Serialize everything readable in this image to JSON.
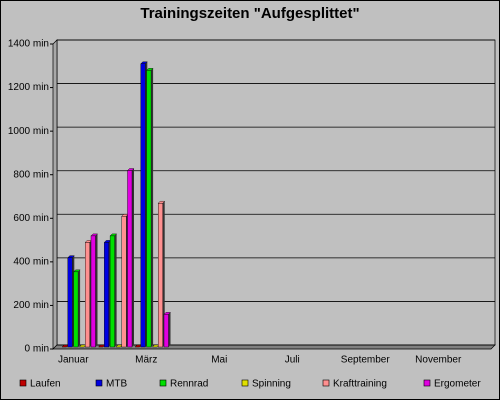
{
  "chart_data": {
    "type": "bar",
    "title": "Trainingszeiten \"Aufgesplittet\"",
    "categories": [
      "Januar",
      null,
      "März",
      null,
      "Mai",
      null,
      "Juli",
      null,
      "September",
      null,
      "November",
      null
    ],
    "series": [
      {
        "name": "Laufen",
        "color": "#c00000",
        "values": [
          0,
          0,
          0,
          null,
          null,
          null,
          null,
          null,
          null,
          null,
          null,
          null
        ]
      },
      {
        "name": "MTB",
        "color": "#0000e0",
        "values": [
          410,
          480,
          1300,
          null,
          null,
          null,
          null,
          null,
          null,
          null,
          null,
          null
        ]
      },
      {
        "name": "Rennrad",
        "color": "#00e000",
        "values": [
          345,
          510,
          1270,
          null,
          null,
          null,
          null,
          null,
          null,
          null,
          null,
          null
        ]
      },
      {
        "name": "Spinning",
        "color": "#e0e000",
        "values": [
          0,
          0,
          0,
          null,
          null,
          null,
          null,
          null,
          null,
          null,
          null,
          null
        ]
      },
      {
        "name": "Krafttraining",
        "color": "#ff9090",
        "values": [
          480,
          600,
          660,
          null,
          null,
          null,
          null,
          null,
          null,
          null,
          null,
          null
        ]
      },
      {
        "name": "Ergometer",
        "color": "#e000e0",
        "values": [
          510,
          810,
          150,
          null,
          null,
          null,
          null,
          null,
          null,
          null,
          null,
          null
        ]
      }
    ],
    "ylim": [
      0,
      1400
    ],
    "yticks": [
      {
        "value": 0,
        "label": "0 min"
      },
      {
        "value": 200,
        "label": "200 min"
      },
      {
        "value": 400,
        "label": "400 min"
      },
      {
        "value": 600,
        "label": "600 min"
      },
      {
        "value": 800,
        "label": "800 min"
      },
      {
        "value": 1000,
        "label": "1000 min"
      },
      {
        "value": 1200,
        "label": "1200 min"
      },
      {
        "value": 1400,
        "label": "1400 min"
      }
    ],
    "grid": true,
    "legend": "bottom"
  }
}
